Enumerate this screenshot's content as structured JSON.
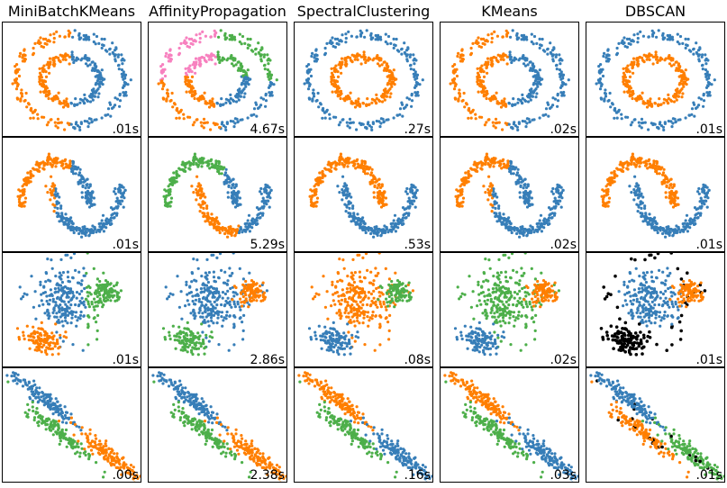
{
  "palette": {
    "blue": "#377eb8",
    "orange": "#ff7f00",
    "green": "#4daf4a",
    "pink": "#f781bf",
    "noise": "#000000"
  },
  "algorithms": [
    "MiniBatchKMeans",
    "AffinityPropagation",
    "SpectralClustering",
    "KMeans",
    "DBSCAN"
  ],
  "datasets": [
    "noisy_circles",
    "noisy_moons",
    "blobs",
    "aniso"
  ],
  "chart_data": {
    "type": "scatter",
    "title": "",
    "layout": "grid 4 rows x 5 columns",
    "grid": false,
    "timings": [
      [
        ".01s",
        "4.67s",
        ".27s",
        ".02s",
        ".01s"
      ],
      [
        ".01s",
        "5.29s",
        ".53s",
        ".02s",
        ".01s"
      ],
      [
        ".01s",
        "2.86s",
        ".08s",
        ".02s",
        ".01s"
      ],
      [
        ".00s",
        "2.38s",
        ".16s",
        ".03s",
        ".01s"
      ]
    ],
    "cluster_colors": [
      [
        [
          "orange",
          "blue"
        ],
        [
          "pink",
          "green",
          "orange",
          "blue"
        ],
        [
          "blue",
          "orange"
        ],
        [
          "orange",
          "blue"
        ],
        [
          "blue",
          "orange"
        ]
      ],
      [
        [
          "orange",
          "blue"
        ],
        [
          "green",
          "blue",
          "orange"
        ],
        [
          "orange",
          "blue"
        ],
        [
          "orange",
          "blue"
        ],
        [
          "orange",
          "blue"
        ]
      ],
      [
        [
          "blue",
          "green",
          "orange"
        ],
        [
          "blue",
          "orange",
          "green"
        ],
        [
          "orange",
          "green",
          "blue"
        ],
        [
          "green",
          "orange",
          "blue"
        ],
        [
          "blue",
          "orange",
          "noise"
        ]
      ],
      [
        [
          "blue",
          "green",
          "orange"
        ],
        [
          "blue",
          "green",
          "orange"
        ],
        [
          "orange",
          "green",
          "blue"
        ],
        [
          "orange",
          "green",
          "blue"
        ],
        [
          "blue",
          "orange",
          "green",
          "noise"
        ]
      ]
    ]
  }
}
